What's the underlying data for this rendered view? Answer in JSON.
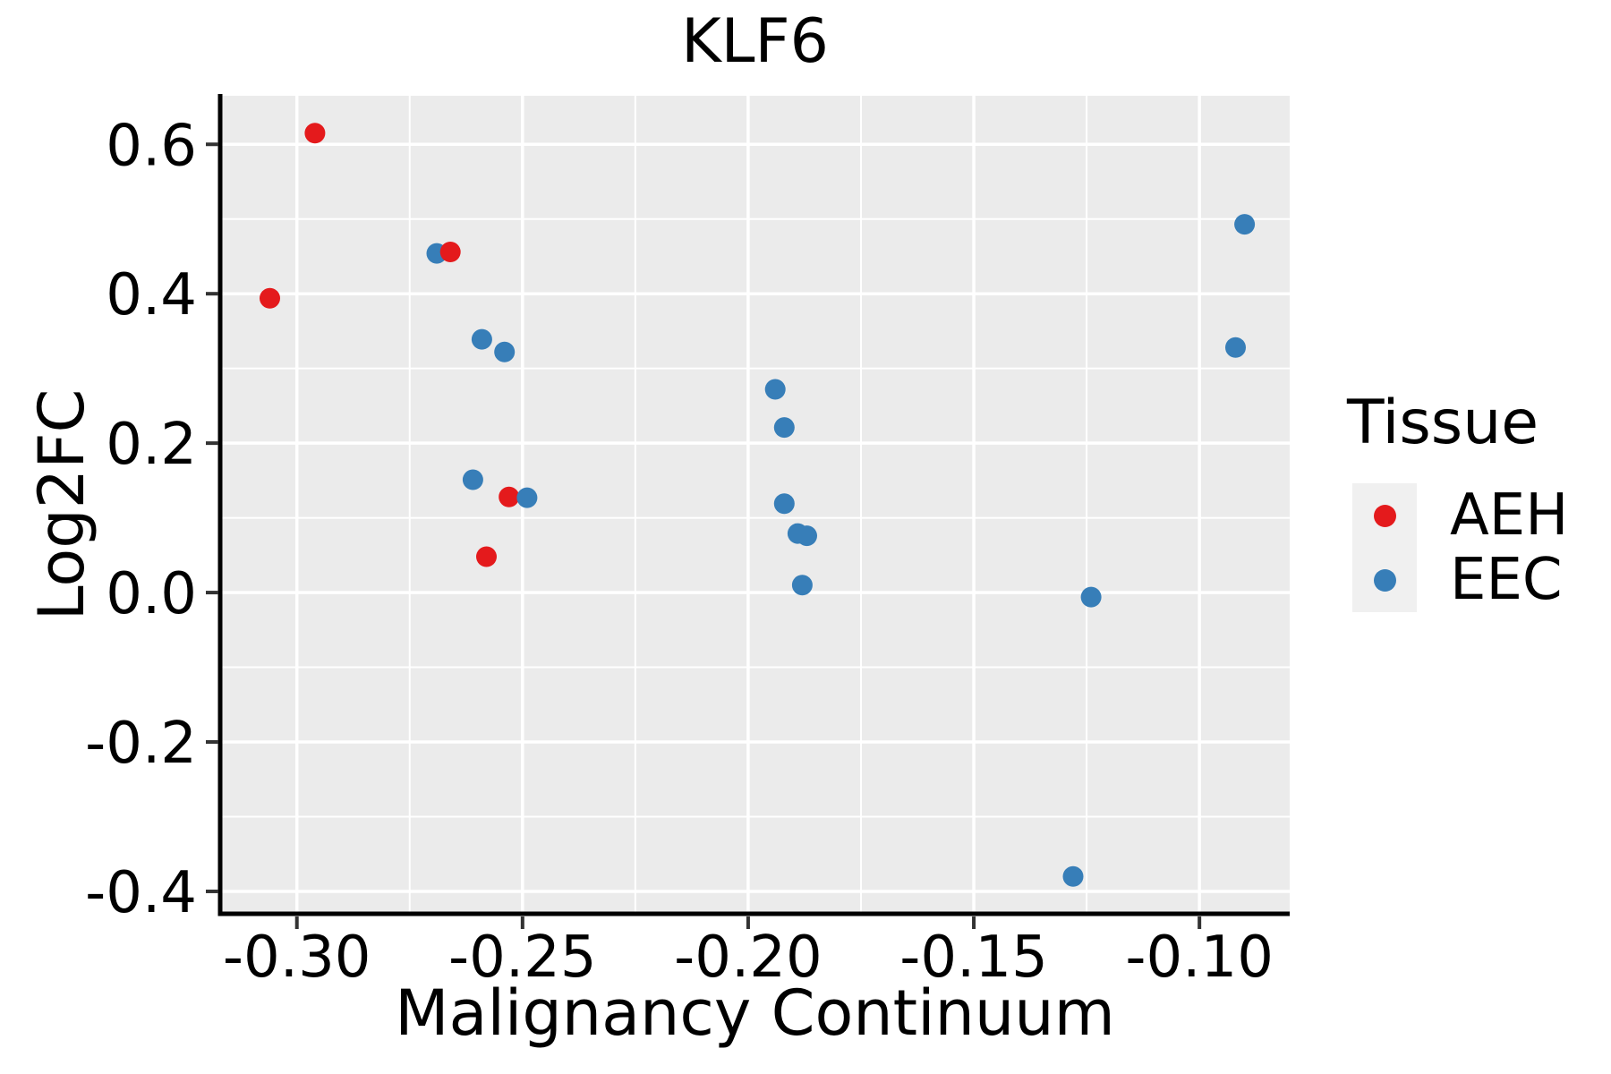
{
  "chart_data": {
    "type": "scatter",
    "title": "KLF6",
    "xlabel": "Malignancy Continuum",
    "ylabel": "Log2FC",
    "xlim": [
      -0.317,
      -0.08
    ],
    "ylim": [
      -0.43,
      0.665
    ],
    "grid": true,
    "panel_bg": "#ebebeb",
    "grid_color": "#ffffff",
    "axis_line_color": "#000000",
    "tick_color": "#333333",
    "text_color": "#000000",
    "x_ticks": [
      -0.3,
      -0.25,
      -0.2,
      -0.15,
      -0.1
    ],
    "x_tick_labels": [
      "-0.30",
      "-0.25",
      "-0.20",
      "-0.15",
      "-0.10"
    ],
    "x_minor_ticks": [
      -0.275,
      -0.225,
      -0.175,
      -0.125
    ],
    "y_ticks": [
      0.6,
      0.4,
      0.2,
      0.0,
      -0.2,
      -0.4
    ],
    "y_tick_labels": [
      "0.6",
      "0.4",
      "0.2",
      "0.0",
      "-0.2",
      "-0.4"
    ],
    "y_minor_ticks": [
      0.5,
      0.3,
      0.1,
      -0.1,
      -0.3
    ],
    "point_radius": 11.5,
    "legend": {
      "title": "Tissue",
      "position": "right",
      "entries": [
        {
          "label": "AEH",
          "color": "#e41a1c"
        },
        {
          "label": "EEC",
          "color": "#377eb8"
        }
      ]
    },
    "series": [
      {
        "name": "AEH",
        "color": "#e41a1c",
        "points": [
          [
            -0.306,
            0.394
          ],
          [
            -0.296,
            0.615
          ],
          [
            -0.266,
            0.456
          ],
          [
            -0.258,
            0.048
          ],
          [
            -0.253,
            0.128
          ]
        ]
      },
      {
        "name": "EEC",
        "color": "#377eb8",
        "points": [
          [
            -0.269,
            0.454
          ],
          [
            -0.261,
            0.151
          ],
          [
            -0.259,
            0.339
          ],
          [
            -0.254,
            0.322
          ],
          [
            -0.249,
            0.127
          ],
          [
            -0.194,
            0.272
          ],
          [
            -0.192,
            0.221
          ],
          [
            -0.192,
            0.119
          ],
          [
            -0.189,
            0.079
          ],
          [
            -0.187,
            0.076
          ],
          [
            -0.188,
            0.01
          ],
          [
            -0.128,
            -0.38
          ],
          [
            -0.124,
            -0.006
          ],
          [
            -0.092,
            0.328
          ],
          [
            -0.09,
            0.493
          ]
        ]
      }
    ]
  }
}
